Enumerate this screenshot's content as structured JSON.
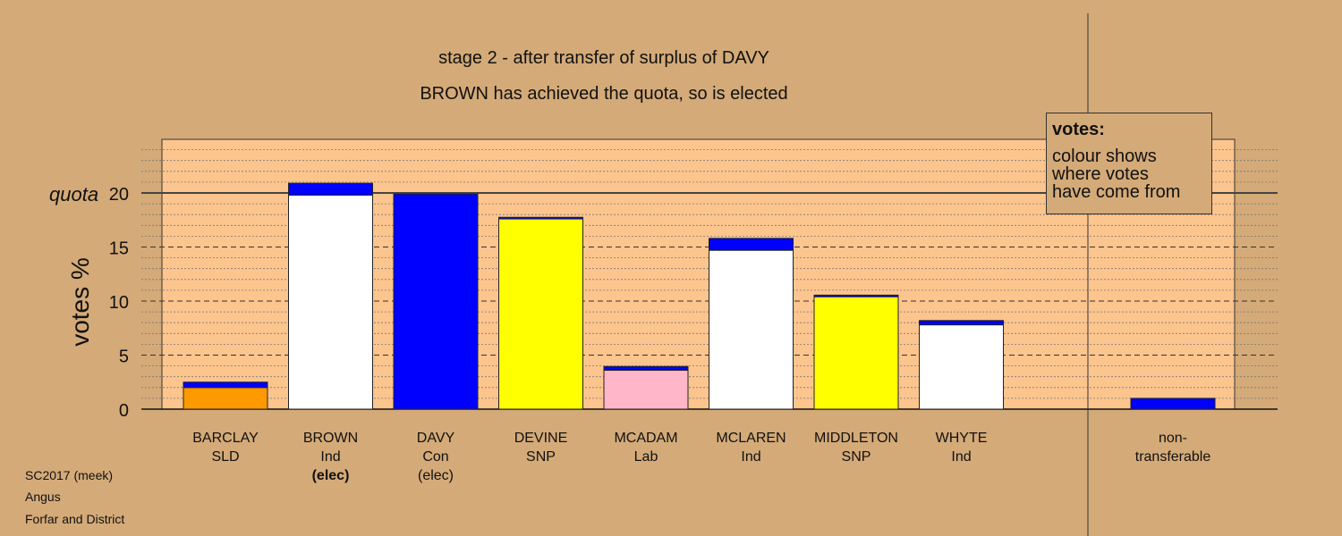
{
  "titles": {
    "line1": "stage 2 - after transfer of surplus of DAVY",
    "line2": "BROWN has achieved the quota, so is elected"
  },
  "legend": {
    "title": "votes:",
    "line1": "colour shows",
    "line2": "where votes",
    "line3": "have come from"
  },
  "footer": {
    "line1": "SC2017 (meek)",
    "line2": "Angus",
    "line3": "Forfar and District"
  },
  "chart_data": {
    "type": "bar",
    "stacked": true,
    "ylabel": "votes %",
    "ylim": [
      0,
      25
    ],
    "yticks": [
      0,
      5,
      10,
      15,
      20
    ],
    "quota": 20,
    "quota_label": "quota",
    "categories": [
      {
        "name": "BARCLAY",
        "party": "SLD",
        "status": ""
      },
      {
        "name": "BROWN",
        "party": "Ind",
        "status": "(elec)",
        "status_bold": true
      },
      {
        "name": "DAVY",
        "party": "Con",
        "status": "(elec)",
        "status_bold": false
      },
      {
        "name": "DEVINE",
        "party": "SNP",
        "status": ""
      },
      {
        "name": "MCADAM",
        "party": "Lab",
        "status": ""
      },
      {
        "name": "MCLAREN",
        "party": "Ind",
        "status": ""
      },
      {
        "name": "MIDDLETON",
        "party": "SNP",
        "status": ""
      },
      {
        "name": "WHYTE",
        "party": "Ind",
        "status": ""
      }
    ],
    "non_transferable": {
      "label_line1": "non-",
      "label_line2": "transferable",
      "value": 1.0,
      "color": "#0000ff"
    },
    "bars": [
      {
        "segments": [
          {
            "value": 2.0,
            "color": "#ff9900"
          },
          {
            "value": 0.5,
            "color": "#0000ff"
          }
        ]
      },
      {
        "segments": [
          {
            "value": 19.8,
            "color": "#ffffff"
          },
          {
            "value": 1.1,
            "color": "#0000ff"
          }
        ]
      },
      {
        "segments": [
          {
            "value": 19.9,
            "color": "#0000ff"
          }
        ]
      },
      {
        "segments": [
          {
            "value": 17.6,
            "color": "#ffff00"
          },
          {
            "value": 0.15,
            "color": "#0000ff"
          }
        ]
      },
      {
        "segments": [
          {
            "value": 3.6,
            "color": "#ffb6c8"
          },
          {
            "value": 0.35,
            "color": "#0000ff"
          }
        ]
      },
      {
        "segments": [
          {
            "value": 14.7,
            "color": "#ffffff"
          },
          {
            "value": 1.1,
            "color": "#0000ff"
          }
        ]
      },
      {
        "segments": [
          {
            "value": 10.4,
            "color": "#ffff00"
          },
          {
            "value": 0.15,
            "color": "#0000ff"
          }
        ]
      },
      {
        "segments": [
          {
            "value": 7.8,
            "color": "#ffffff"
          },
          {
            "value": 0.4,
            "color": "#0000ff"
          }
        ]
      }
    ]
  }
}
